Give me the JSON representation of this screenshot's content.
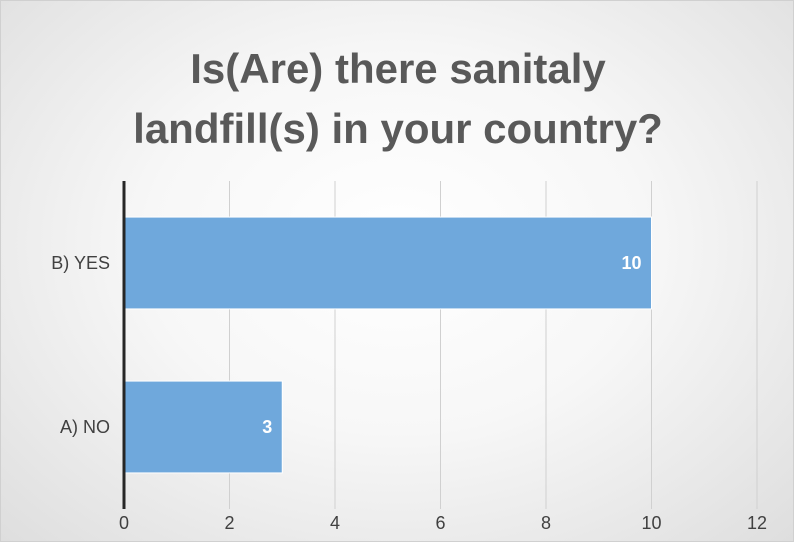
{
  "chart_data": {
    "type": "bar",
    "orientation": "horizontal",
    "title_lines": [
      "Is(Are) there sanitaly",
      "landfill(s) in your country?"
    ],
    "categories": [
      "B) YES",
      "A) NO"
    ],
    "values": [
      10,
      3
    ],
    "data_labels": [
      "10",
      "3"
    ],
    "xlim": [
      0,
      12
    ],
    "x_ticks": [
      "0",
      "2",
      "4",
      "6",
      "8",
      "10",
      "12"
    ],
    "xlabel": "",
    "ylabel": "",
    "grid": "vertical",
    "legend": "none",
    "bar_color": "#6fa8dc",
    "axis_color": "#262626",
    "grid_color": "#d0d0d0"
  }
}
